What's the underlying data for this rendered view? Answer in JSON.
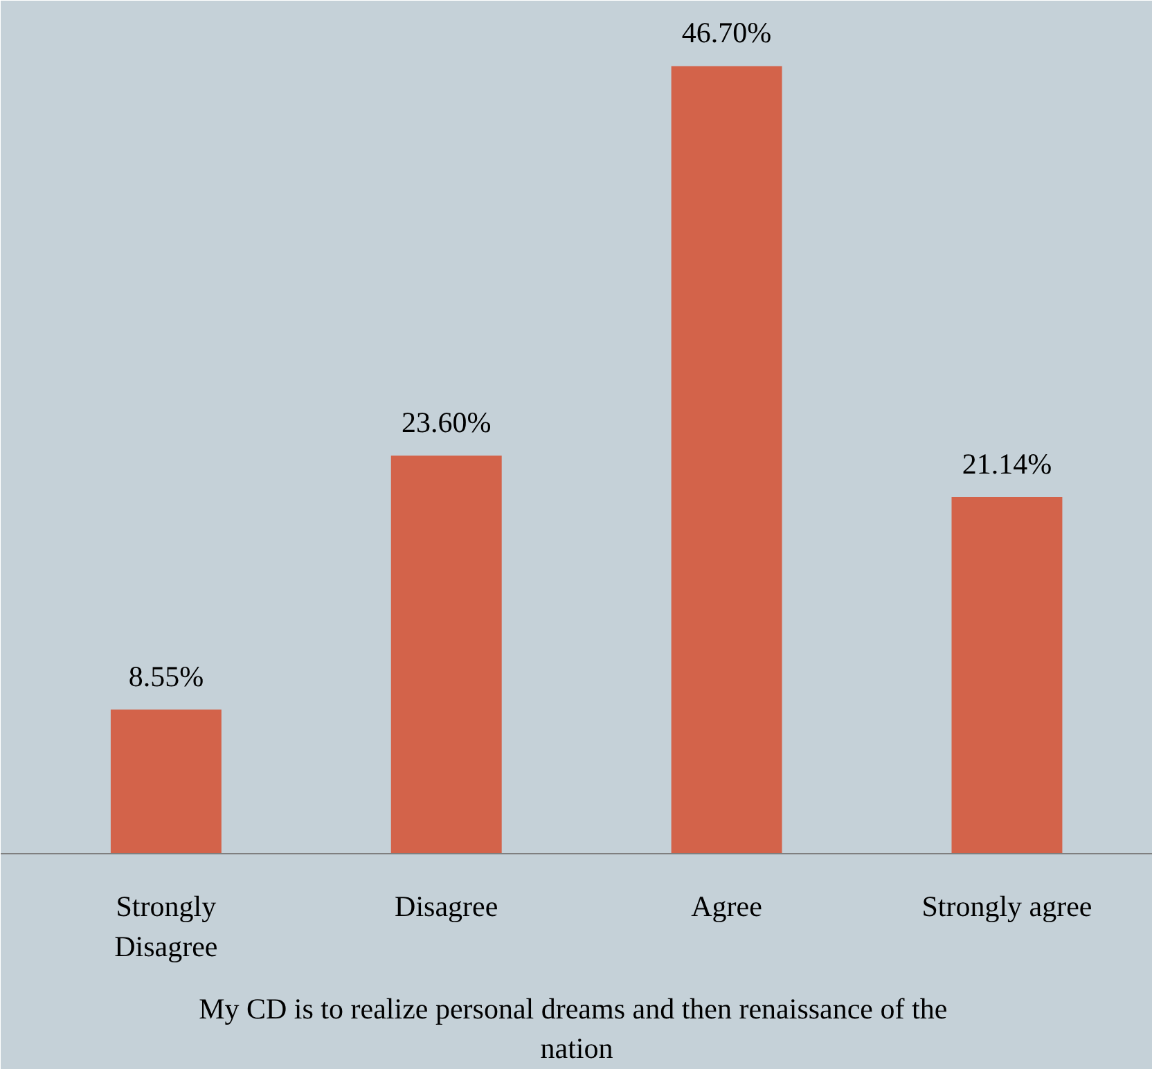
{
  "chart_data": {
    "type": "bar",
    "categories": [
      "Strongly Disagree",
      "Disagree",
      "Agree",
      "Strongly agree"
    ],
    "values": [
      8.55,
      23.6,
      46.7,
      21.14
    ],
    "value_labels": [
      "8.55%",
      "23.60%",
      "46.70%",
      "21.14%"
    ],
    "color": "#d3634a",
    "xlabel": "My CD is to realize personal dreams and then  renaissance of the nation",
    "grid": false
  }
}
